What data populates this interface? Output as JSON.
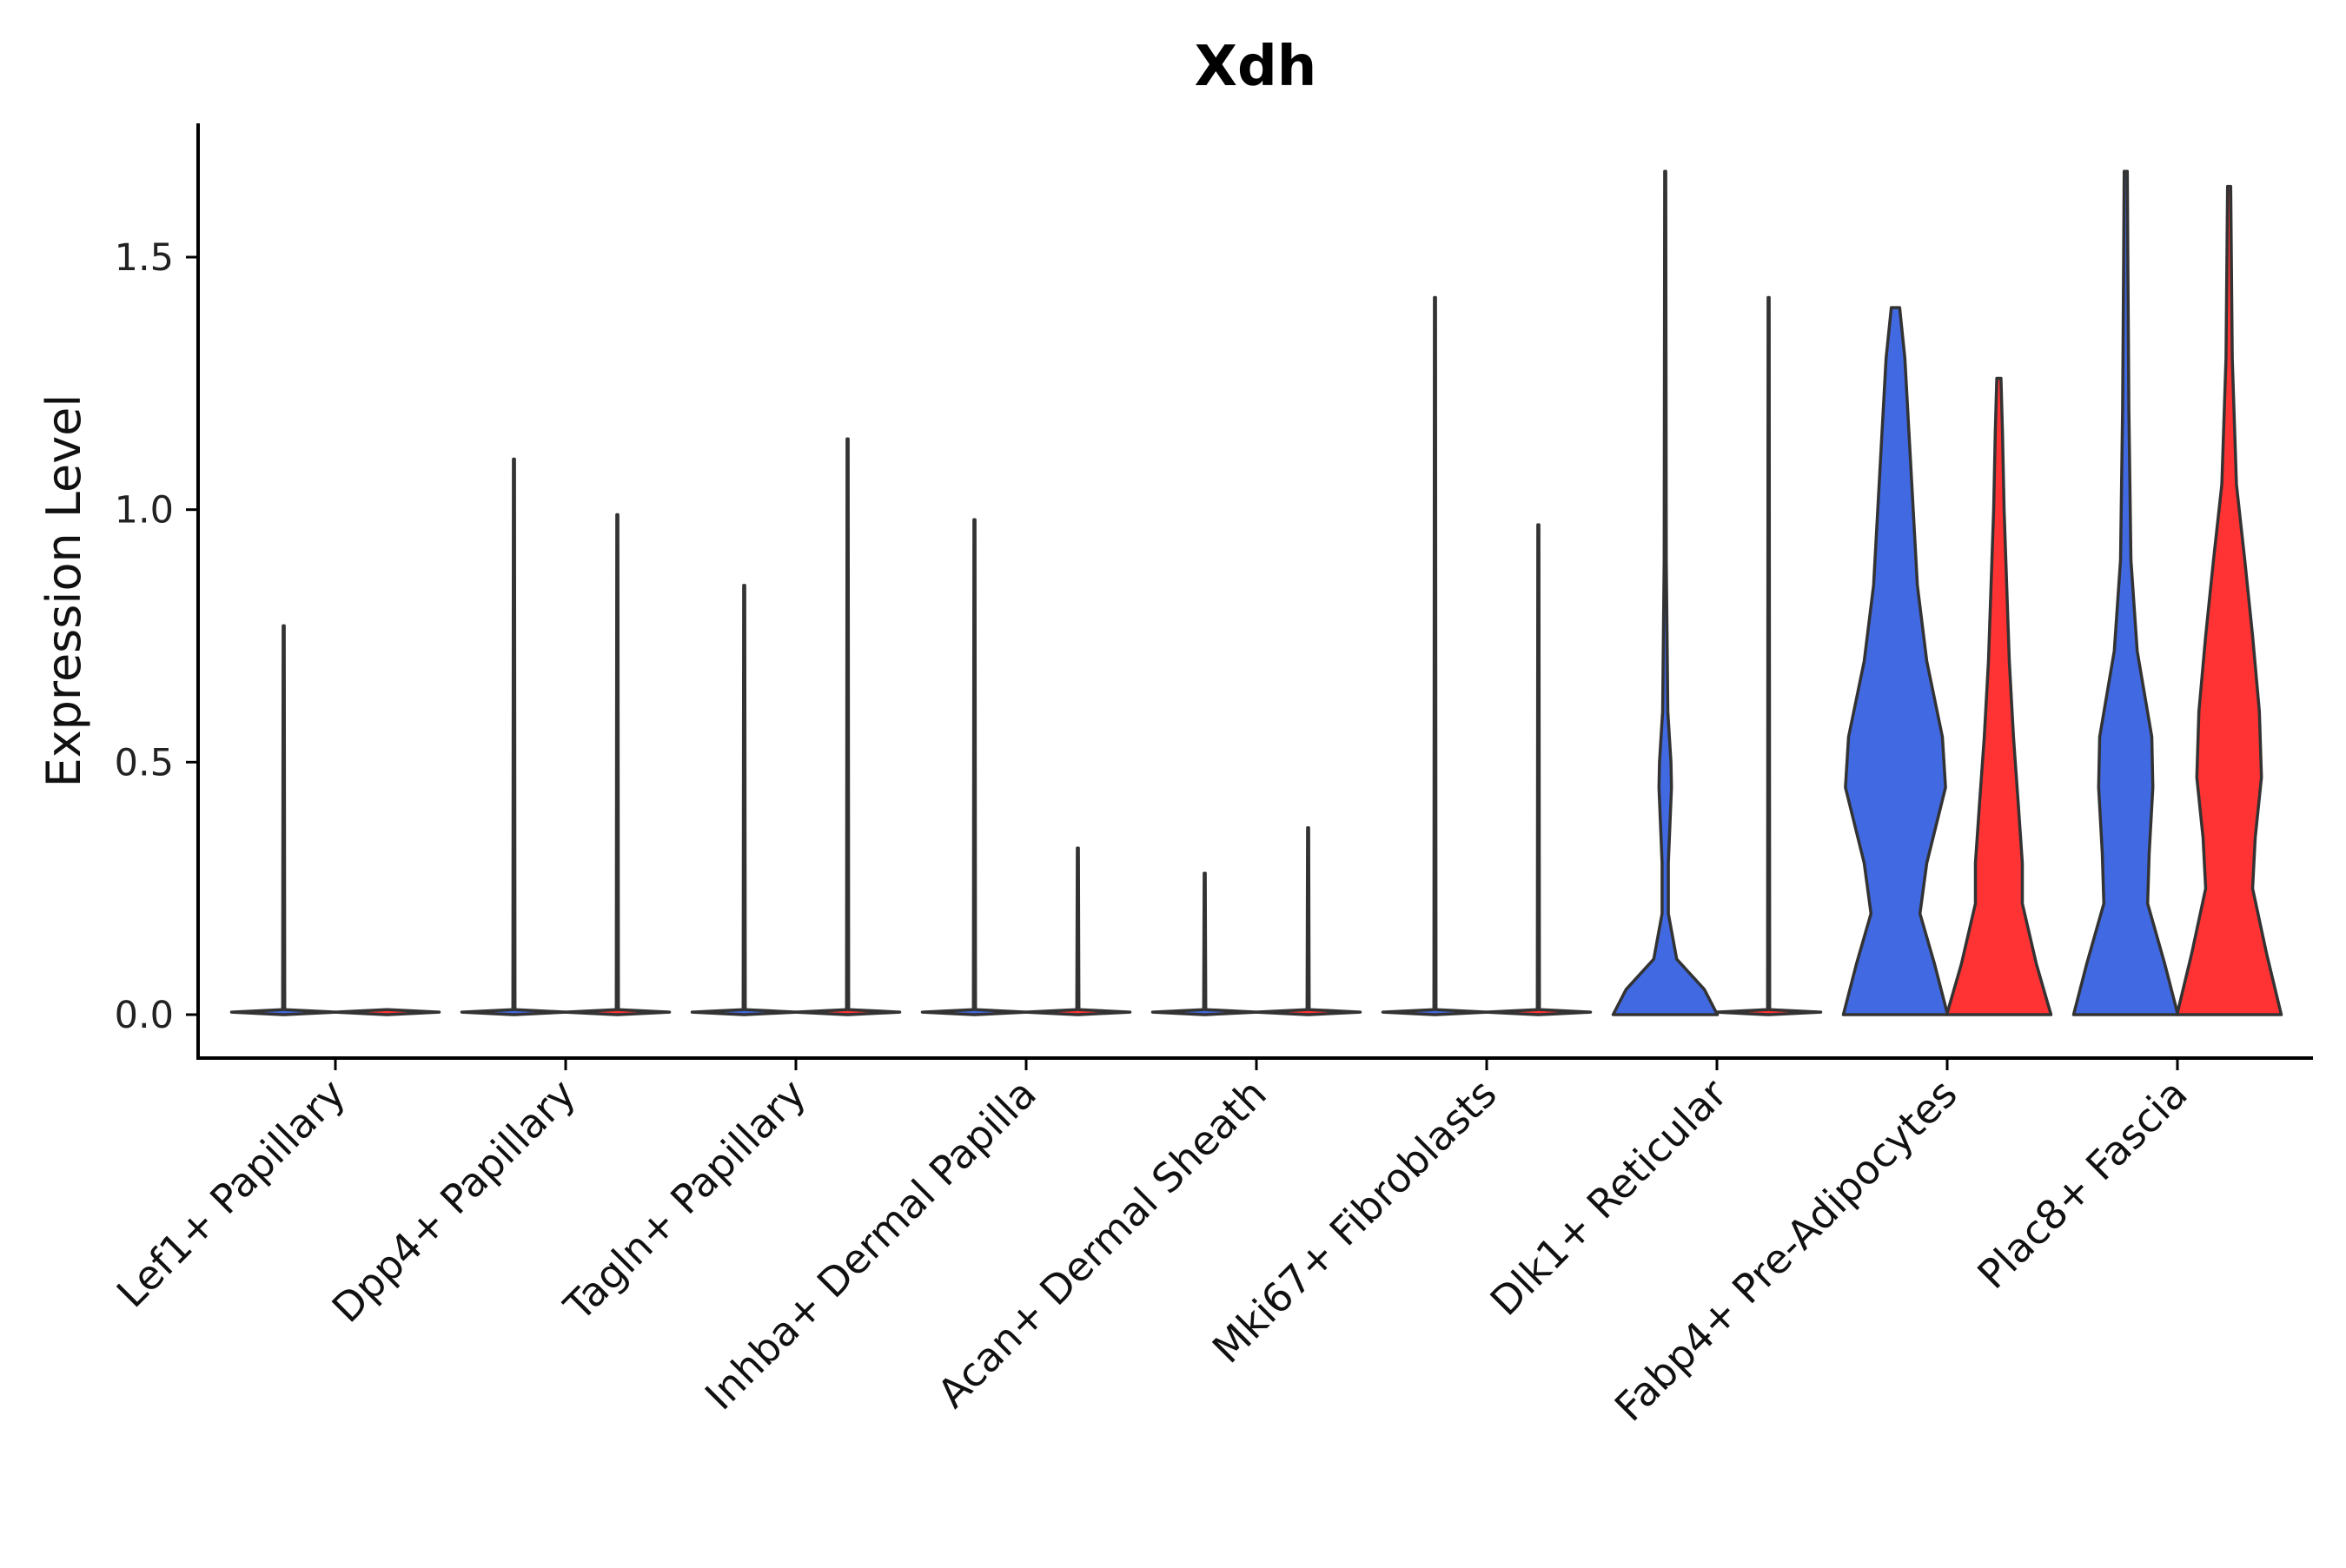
{
  "chart_data": {
    "type": "violin",
    "title": "Xdh",
    "xlabel": "",
    "ylabel": "Expression Level",
    "ylim": [
      -0.08,
      1.76
    ],
    "yticks": [
      0.0,
      0.5,
      1.0,
      1.5
    ],
    "ytick_labels": [
      "0.0",
      "0.5",
      "1.0",
      "1.5"
    ],
    "grid": false,
    "legend": "none",
    "colors": {
      "blue": "#4169E1",
      "red": "#FF3333",
      "outline": "#333333"
    },
    "categories": [
      "Lef1+ Papillary",
      "Dpp4+ Papillary",
      "Tagln+ Papillary",
      "Inhba+ Dermal Papilla",
      "Acan+ Dermal Sheath",
      "Mki67+ Fibroblasts",
      "Dlk1+ Reticular",
      "Fabp4+ Pre-Adipocytes",
      "Plac8+ Fascia"
    ],
    "violins": [
      {
        "category_index": 0,
        "offset": 0,
        "fill": "#4169E1",
        "max": 0.77,
        "density": [
          [
            0,
            0.02
          ],
          [
            0.005,
            1
          ],
          [
            0.01,
            0.02
          ],
          [
            0.77,
            0.01
          ]
        ]
      },
      {
        "category_index": 0,
        "offset": 1,
        "fill": "#FF3333",
        "max": 0.0,
        "density": [
          [
            0,
            0.02
          ],
          [
            0.005,
            1
          ],
          [
            0.01,
            0.02
          ]
        ]
      },
      {
        "category_index": 1,
        "offset": 0,
        "fill": "#4169E1",
        "max": 1.1,
        "density": [
          [
            0,
            0.02
          ],
          [
            0.005,
            1
          ],
          [
            0.01,
            0.02
          ],
          [
            1.1,
            0.01
          ]
        ]
      },
      {
        "category_index": 1,
        "offset": 1,
        "fill": "#FF3333",
        "max": 0.99,
        "density": [
          [
            0,
            0.02
          ],
          [
            0.005,
            1
          ],
          [
            0.01,
            0.02
          ],
          [
            0.99,
            0.01
          ]
        ]
      },
      {
        "category_index": 2,
        "offset": 0,
        "fill": "#4169E1",
        "max": 0.85,
        "density": [
          [
            0,
            0.02
          ],
          [
            0.005,
            1
          ],
          [
            0.01,
            0.02
          ],
          [
            0.85,
            0.01
          ]
        ]
      },
      {
        "category_index": 2,
        "offset": 1,
        "fill": "#FF3333",
        "max": 1.14,
        "density": [
          [
            0,
            0.02
          ],
          [
            0.005,
            1
          ],
          [
            0.01,
            0.02
          ],
          [
            1.14,
            0.01
          ]
        ]
      },
      {
        "category_index": 3,
        "offset": 0,
        "fill": "#4169E1",
        "max": 0.98,
        "density": [
          [
            0,
            0.02
          ],
          [
            0.005,
            1
          ],
          [
            0.01,
            0.02
          ],
          [
            0.98,
            0.01
          ]
        ]
      },
      {
        "category_index": 3,
        "offset": 1,
        "fill": "#FF3333",
        "max": 0.33,
        "density": [
          [
            0,
            0.02
          ],
          [
            0.005,
            1
          ],
          [
            0.01,
            0.02
          ],
          [
            0.33,
            0.01
          ]
        ]
      },
      {
        "category_index": 4,
        "offset": 0,
        "fill": "#4169E1",
        "max": 0.28,
        "density": [
          [
            0,
            0.02
          ],
          [
            0.005,
            1
          ],
          [
            0.01,
            0.02
          ],
          [
            0.28,
            0.01
          ]
        ]
      },
      {
        "category_index": 4,
        "offset": 1,
        "fill": "#FF3333",
        "max": 0.37,
        "density": [
          [
            0,
            0.02
          ],
          [
            0.005,
            1
          ],
          [
            0.01,
            0.02
          ],
          [
            0.37,
            0.01
          ]
        ]
      },
      {
        "category_index": 5,
        "offset": 0,
        "fill": "#4169E1",
        "max": 1.42,
        "density": [
          [
            0,
            0.02
          ],
          [
            0.005,
            1
          ],
          [
            0.01,
            0.02
          ],
          [
            1.42,
            0.01
          ]
        ]
      },
      {
        "category_index": 5,
        "offset": 1,
        "fill": "#FF3333",
        "max": 0.97,
        "density": [
          [
            0,
            0.02
          ],
          [
            0.005,
            1
          ],
          [
            0.01,
            0.02
          ],
          [
            0.97,
            0.01
          ]
        ]
      },
      {
        "category_index": 6,
        "offset": 0,
        "fill": "#4169E1",
        "max": 1.67,
        "density": [
          [
            0,
            1.0
          ],
          [
            0.05,
            0.75
          ],
          [
            0.11,
            0.22
          ],
          [
            0.2,
            0.06
          ],
          [
            0.3,
            0.06
          ],
          [
            0.45,
            0.12
          ],
          [
            0.5,
            0.11
          ],
          [
            0.6,
            0.05
          ],
          [
            0.9,
            0.02
          ],
          [
            1.67,
            0.01
          ]
        ]
      },
      {
        "category_index": 6,
        "offset": 1,
        "fill": "#FF3333",
        "max": 1.42,
        "density": [
          [
            0,
            0.02
          ],
          [
            0.005,
            1
          ],
          [
            0.01,
            0.02
          ],
          [
            1.42,
            0.01
          ]
        ]
      },
      {
        "category_index": 7,
        "offset": 0,
        "fill": "#4169E1",
        "max": 1.4,
        "density": [
          [
            0,
            1.0
          ],
          [
            0.1,
            0.75
          ],
          [
            0.2,
            0.47
          ],
          [
            0.3,
            0.6
          ],
          [
            0.45,
            0.96
          ],
          [
            0.55,
            0.9
          ],
          [
            0.7,
            0.6
          ],
          [
            0.85,
            0.42
          ],
          [
            1.0,
            0.34
          ],
          [
            1.15,
            0.26
          ],
          [
            1.3,
            0.18
          ],
          [
            1.38,
            0.1
          ],
          [
            1.4,
            0.08
          ]
        ]
      },
      {
        "category_index": 7,
        "offset": 1,
        "fill": "#FF3333",
        "max": 1.26,
        "density": [
          [
            0,
            1.0
          ],
          [
            0.1,
            0.72
          ],
          [
            0.22,
            0.45
          ],
          [
            0.3,
            0.45
          ],
          [
            0.42,
            0.37
          ],
          [
            0.55,
            0.28
          ],
          [
            0.7,
            0.2
          ],
          [
            0.85,
            0.15
          ],
          [
            1.0,
            0.1
          ],
          [
            1.15,
            0.07
          ],
          [
            1.26,
            0.04
          ]
        ]
      },
      {
        "category_index": 8,
        "offset": 0,
        "fill": "#4169E1",
        "max": 1.67,
        "density": [
          [
            0,
            1.0
          ],
          [
            0.1,
            0.75
          ],
          [
            0.22,
            0.42
          ],
          [
            0.32,
            0.45
          ],
          [
            0.45,
            0.52
          ],
          [
            0.55,
            0.5
          ],
          [
            0.72,
            0.22
          ],
          [
            0.9,
            0.1
          ],
          [
            1.2,
            0.06
          ],
          [
            1.5,
            0.04
          ],
          [
            1.67,
            0.03
          ]
        ]
      },
      {
        "category_index": 8,
        "offset": 1,
        "fill": "#FF3333",
        "max": 1.64,
        "density": [
          [
            0,
            1.0
          ],
          [
            0.12,
            0.72
          ],
          [
            0.25,
            0.45
          ],
          [
            0.35,
            0.5
          ],
          [
            0.47,
            0.62
          ],
          [
            0.6,
            0.58
          ],
          [
            0.75,
            0.45
          ],
          [
            0.9,
            0.3
          ],
          [
            1.05,
            0.14
          ],
          [
            1.3,
            0.06
          ],
          [
            1.64,
            0.03
          ]
        ]
      }
    ]
  }
}
